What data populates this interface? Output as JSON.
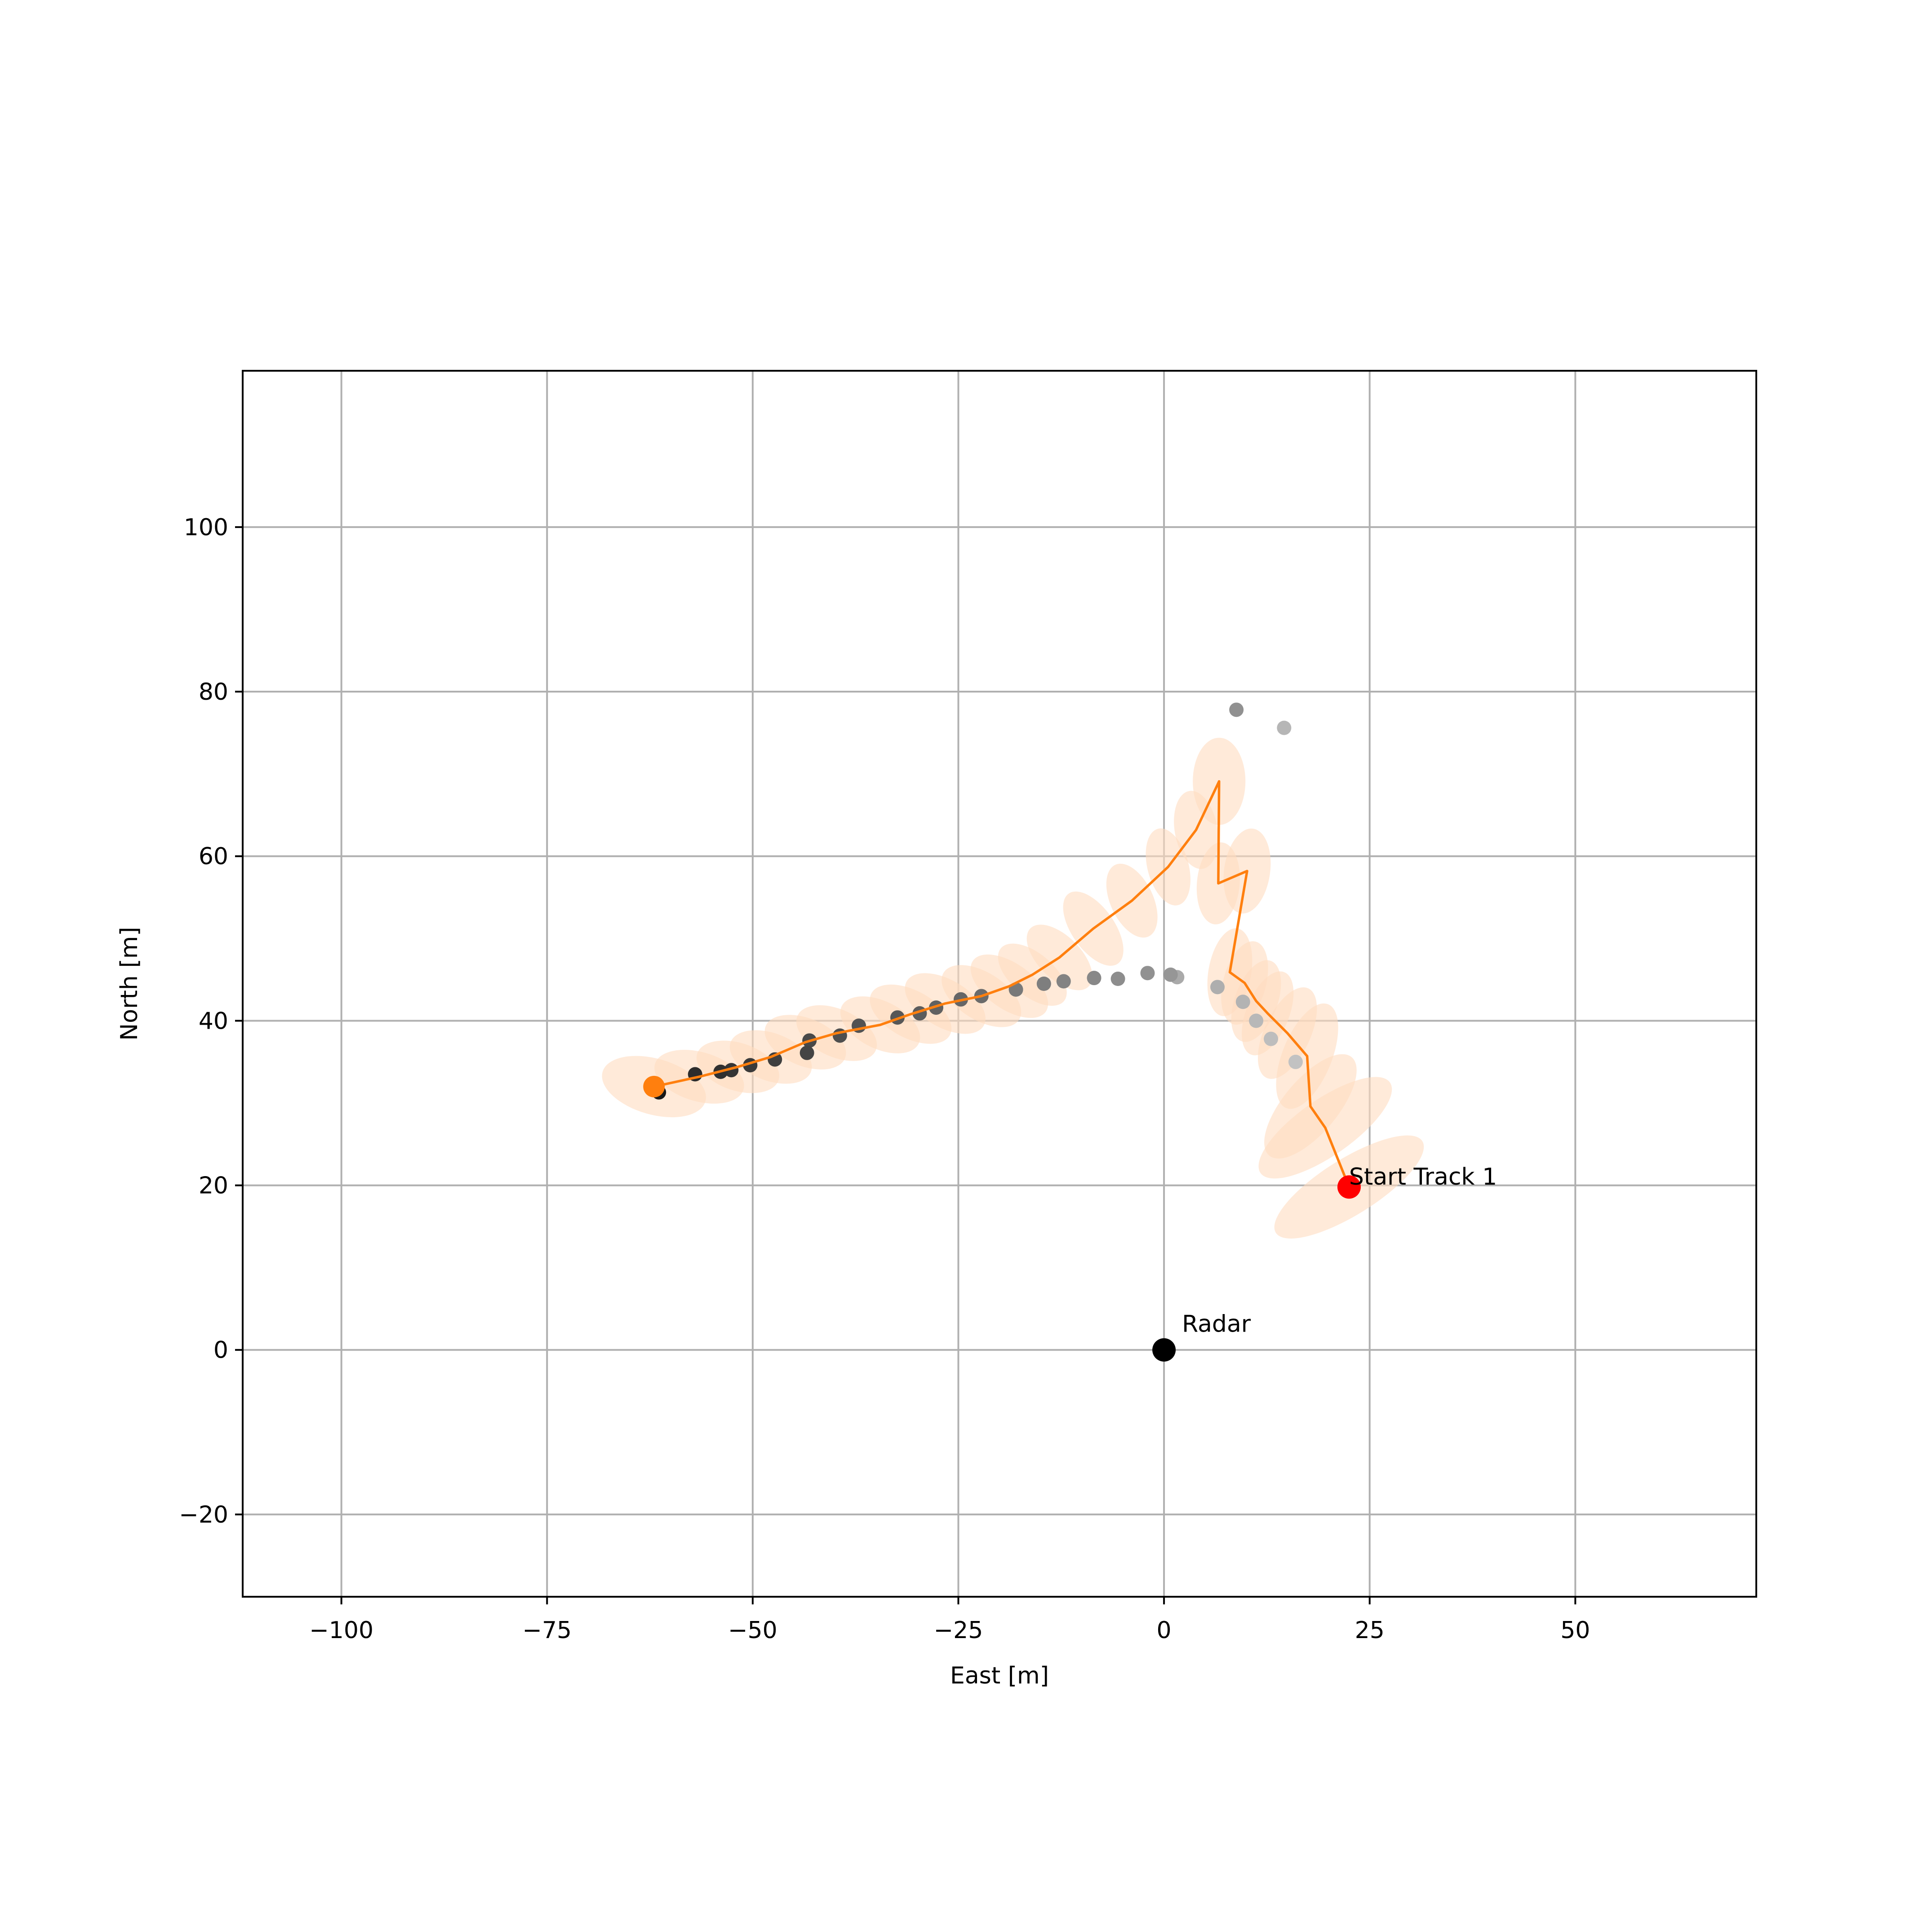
{
  "chart_data": {
    "type": "scatter",
    "xlabel": "East [m]",
    "ylabel": "North [m]",
    "xlim": [
      -112,
      72
    ],
    "ylim": [
      -30,
      119
    ],
    "xticks": [
      -100,
      -75,
      -50,
      -25,
      0,
      25,
      50
    ],
    "yticks": [
      -20,
      0,
      20,
      40,
      60,
      80,
      100
    ],
    "xtick_labels": [
      "−100",
      "−75",
      "−50",
      "−25",
      "0",
      "25",
      "50"
    ],
    "ytick_labels": [
      "−20",
      "0",
      "20",
      "40",
      "60",
      "80",
      "100"
    ],
    "grid": true,
    "annotations": [
      {
        "id": "radar",
        "text": "Radar",
        "x": 0,
        "y": 0
      },
      {
        "id": "start",
        "text": "Start Track 1",
        "x": 22.5,
        "y": 19.8
      }
    ],
    "radar_point": {
      "x": 0,
      "y": 0,
      "color": "#000000"
    },
    "start_point": {
      "x": 22.5,
      "y": 19.8,
      "color": "#ff0000"
    },
    "end_point": {
      "x": -62,
      "y": 32,
      "color": "#ff7f0e"
    },
    "detections": [
      {
        "x": 8.8,
        "y": 77.8,
        "shade": 0.6
      },
      {
        "x": 14.6,
        "y": 75.6,
        "shade": 0.75
      },
      {
        "x": 16.0,
        "y": 35.0,
        "shade": 0.8
      },
      {
        "x": 13.0,
        "y": 37.8,
        "shade": 0.78
      },
      {
        "x": 11.2,
        "y": 40.0,
        "shade": 0.76
      },
      {
        "x": 9.6,
        "y": 42.3,
        "shade": 0.74
      },
      {
        "x": 6.5,
        "y": 44.1,
        "shade": 0.72
      },
      {
        "x": 1.6,
        "y": 45.3,
        "shade": 0.7
      },
      {
        "x": 0.8,
        "y": 45.6,
        "shade": 0.62
      },
      {
        "x": -2.0,
        "y": 45.8,
        "shade": 0.6
      },
      {
        "x": -5.6,
        "y": 45.1,
        "shade": 0.58
      },
      {
        "x": -8.5,
        "y": 45.2,
        "shade": 0.56
      },
      {
        "x": -12.2,
        "y": 44.8,
        "shade": 0.54
      },
      {
        "x": -14.6,
        "y": 44.5,
        "shade": 0.52
      },
      {
        "x": -18.0,
        "y": 43.8,
        "shade": 0.5
      },
      {
        "x": -22.2,
        "y": 43.0,
        "shade": 0.44
      },
      {
        "x": -24.7,
        "y": 42.6,
        "shade": 0.42
      },
      {
        "x": -27.7,
        "y": 41.6,
        "shade": 0.4
      },
      {
        "x": -29.7,
        "y": 40.9,
        "shade": 0.38
      },
      {
        "x": -32.4,
        "y": 40.4,
        "shade": 0.36
      },
      {
        "x": -37.1,
        "y": 39.4,
        "shade": 0.34
      },
      {
        "x": -39.4,
        "y": 38.2,
        "shade": 0.32
      },
      {
        "x": -43.1,
        "y": 37.6,
        "shade": 0.3
      },
      {
        "x": -43.4,
        "y": 36.1,
        "shade": 0.28
      },
      {
        "x": -47.3,
        "y": 35.3,
        "shade": 0.26
      },
      {
        "x": -50.3,
        "y": 34.6,
        "shade": 0.24
      },
      {
        "x": -52.6,
        "y": 34.0,
        "shade": 0.22
      },
      {
        "x": -53.9,
        "y": 33.8,
        "shade": 0.2
      },
      {
        "x": -57.0,
        "y": 33.5,
        "shade": 0.18
      },
      {
        "x": -61.4,
        "y": 31.3,
        "shade": 0.1
      }
    ],
    "track": [
      {
        "x": 22.5,
        "y": 19.8
      },
      {
        "x": 19.6,
        "y": 27.0
      },
      {
        "x": 17.8,
        "y": 29.6
      },
      {
        "x": 17.4,
        "y": 35.7
      },
      {
        "x": 15.0,
        "y": 38.5
      },
      {
        "x": 12.6,
        "y": 40.9
      },
      {
        "x": 11.2,
        "y": 42.4
      },
      {
        "x": 9.8,
        "y": 44.6
      },
      {
        "x": 8.0,
        "y": 45.9
      },
      {
        "x": 10.1,
        "y": 58.2
      },
      {
        "x": 6.6,
        "y": 56.7
      },
      {
        "x": 6.7,
        "y": 69.1
      },
      {
        "x": 3.9,
        "y": 63.2
      },
      {
        "x": 0.5,
        "y": 58.7
      },
      {
        "x": -3.9,
        "y": 54.6
      },
      {
        "x": -8.6,
        "y": 51.2
      },
      {
        "x": -12.7,
        "y": 47.7
      },
      {
        "x": -16.0,
        "y": 45.6
      },
      {
        "x": -18.8,
        "y": 44.2
      },
      {
        "x": -22.2,
        "y": 43.0
      },
      {
        "x": -26.6,
        "y": 42.1
      },
      {
        "x": -30.8,
        "y": 40.8
      },
      {
        "x": -34.5,
        "y": 39.5
      },
      {
        "x": -39.8,
        "y": 38.5
      },
      {
        "x": -43.6,
        "y": 37.4
      },
      {
        "x": -47.8,
        "y": 35.6
      },
      {
        "x": -51.8,
        "y": 34.4
      },
      {
        "x": -56.5,
        "y": 33.2
      },
      {
        "x": -62.0,
        "y": 32.0
      }
    ],
    "ellipses": [
      {
        "x": 22.5,
        "y": 19.8,
        "rx": 3.4,
        "ry": 10.5,
        "angle": 58
      },
      {
        "x": 19.6,
        "y": 27.0,
        "rx": 3.4,
        "ry": 9.6,
        "angle": 55
      },
      {
        "x": 17.8,
        "y": 29.6,
        "rx": 3.3,
        "ry": 7.8,
        "angle": 40
      },
      {
        "x": 17.4,
        "y": 35.7,
        "rx": 3.0,
        "ry": 6.8,
        "angle": 22
      },
      {
        "x": 15.0,
        "y": 38.5,
        "rx": 2.8,
        "ry": 6.0,
        "angle": 25
      },
      {
        "x": 12.6,
        "y": 40.9,
        "rx": 2.6,
        "ry": 5.4,
        "angle": 22
      },
      {
        "x": 11.2,
        "y": 42.4,
        "rx": 2.6,
        "ry": 5.2,
        "angle": 20
      },
      {
        "x": 9.8,
        "y": 44.6,
        "rx": 2.6,
        "ry": 5.2,
        "angle": 15
      },
      {
        "x": 8.0,
        "y": 45.9,
        "rx": 2.6,
        "ry": 5.4,
        "angle": 10
      },
      {
        "x": 10.1,
        "y": 58.2,
        "rx": 2.8,
        "ry": 5.2,
        "angle": 8
      },
      {
        "x": 6.6,
        "y": 56.7,
        "rx": 2.6,
        "ry": 5.0,
        "angle": 5
      },
      {
        "x": 6.7,
        "y": 69.1,
        "rx": 3.2,
        "ry": 5.3,
        "angle": 0
      },
      {
        "x": 3.9,
        "y": 63.2,
        "rx": 2.6,
        "ry": 4.8,
        "angle": -10
      },
      {
        "x": 0.5,
        "y": 58.7,
        "rx": 2.5,
        "ry": 4.8,
        "angle": -15
      },
      {
        "x": -3.9,
        "y": 54.6,
        "rx": 2.6,
        "ry": 4.8,
        "angle": -25
      },
      {
        "x": -8.6,
        "y": 51.2,
        "rx": 2.6,
        "ry": 5.2,
        "angle": -35
      },
      {
        "x": -12.7,
        "y": 47.7,
        "rx": 2.6,
        "ry": 5.0,
        "angle": -45
      },
      {
        "x": -16.0,
        "y": 45.6,
        "rx": 2.6,
        "ry": 5.0,
        "angle": -50
      },
      {
        "x": -18.8,
        "y": 44.2,
        "rx": 2.8,
        "ry": 5.4,
        "angle": -55
      },
      {
        "x": -22.2,
        "y": 43.0,
        "rx": 2.9,
        "ry": 5.4,
        "angle": -58
      },
      {
        "x": -26.6,
        "y": 42.1,
        "rx": 2.9,
        "ry": 5.4,
        "angle": -60
      },
      {
        "x": -30.8,
        "y": 40.8,
        "rx": 2.9,
        "ry": 5.4,
        "angle": -62
      },
      {
        "x": -34.5,
        "y": 39.5,
        "rx": 2.9,
        "ry": 5.2,
        "angle": -64
      },
      {
        "x": -39.8,
        "y": 38.5,
        "rx": 2.9,
        "ry": 5.2,
        "angle": -66
      },
      {
        "x": -43.6,
        "y": 37.4,
        "rx": 2.9,
        "ry": 5.2,
        "angle": -68
      },
      {
        "x": -47.8,
        "y": 35.6,
        "rx": 2.9,
        "ry": 5.2,
        "angle": -70
      },
      {
        "x": -51.8,
        "y": 34.4,
        "rx": 2.9,
        "ry": 5.2,
        "angle": -72
      },
      {
        "x": -56.5,
        "y": 33.2,
        "rx": 3.0,
        "ry": 5.6,
        "angle": -74
      },
      {
        "x": -62.0,
        "y": 32.0,
        "rx": 3.4,
        "ry": 6.5,
        "angle": -74
      }
    ],
    "colors": {
      "track": "#ff7f0e",
      "ellipse": "#ffdcbf",
      "grid": "#b0b0b0",
      "axes": "#000000"
    }
  }
}
